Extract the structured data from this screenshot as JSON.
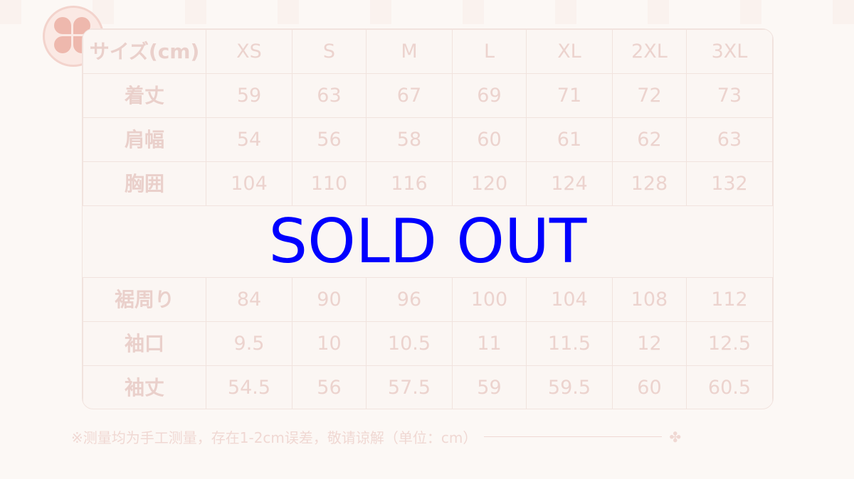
{
  "table": {
    "header": [
      "サイズ(cm)",
      "XS",
      "S",
      "M",
      "L",
      "XL",
      "2XL",
      "3XL"
    ],
    "rows": [
      [
        "着丈",
        "59",
        "63",
        "67",
        "69",
        "71",
        "72",
        "73"
      ],
      [
        "肩幅",
        "54",
        "56",
        "58",
        "60",
        "61",
        "62",
        "63"
      ],
      [
        "胸囲",
        "104",
        "110",
        "116",
        "120",
        "124",
        "128",
        "132"
      ],
      [
        "裾周り",
        "84",
        "90",
        "96",
        "100",
        "104",
        "108",
        "112"
      ],
      [
        "袖口",
        "9.5",
        "10",
        "10.5",
        "11",
        "11.5",
        "12",
        "12.5"
      ],
      [
        "袖丈",
        "54.5",
        "56",
        "57.5",
        "59",
        "59.5",
        "60",
        "60.5"
      ]
    ]
  },
  "note": "※测量均为手工测量，存在1-2cm误差，敬请谅解（单位：cm）",
  "overlay": "SOLD OUT",
  "colors": {
    "overlay": "#0000ff",
    "text": "#ecd3ce"
  }
}
